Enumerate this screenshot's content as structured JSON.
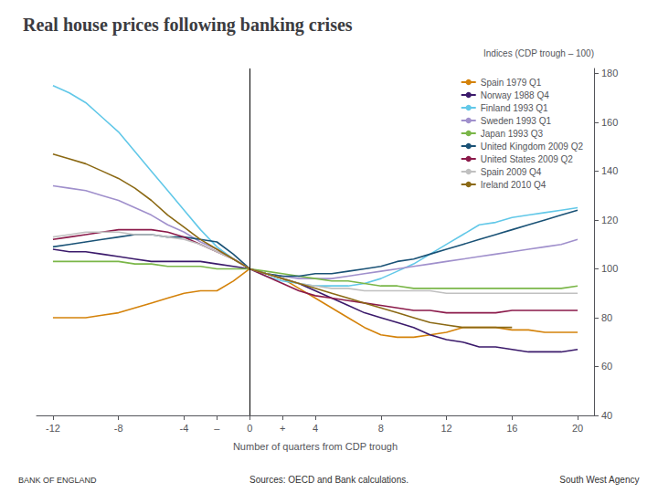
{
  "chart_data": {
    "type": "line",
    "title": "Real house prices following banking crises",
    "ylabel": "Indices (CDP trough – 100)",
    "xlabel": "Number of quarters from CDP trough",
    "annotations": [
      "BANK OF ENGLAND",
      "Sources: OECD and Bank calculations.",
      "South West Agency"
    ],
    "xlim": [
      -13,
      21
    ],
    "ylim": [
      40,
      182
    ],
    "xticks": [
      {
        "value": -12,
        "label": "-12"
      },
      {
        "value": -8,
        "label": "-8"
      },
      {
        "value": -4,
        "label": "-4"
      },
      {
        "value": -2,
        "label": "–"
      },
      0,
      {
        "value": 2,
        "label": "+"
      },
      4,
      8,
      12,
      16,
      20
    ],
    "yticks": [
      40,
      60,
      80,
      100,
      120,
      140,
      160,
      180
    ],
    "vline": 0,
    "vline_color": "#000000",
    "grid": false,
    "legend": "upper right",
    "series": [
      {
        "name": "Spain 1979 Q1",
        "color": "#D4820A",
        "x": [
          -12,
          -11,
          -10,
          -9,
          -8,
          -7,
          -6,
          -5,
          -4,
          -3,
          -2,
          -1,
          0,
          1,
          2,
          3,
          4,
          5,
          6,
          7,
          8,
          9,
          10,
          11,
          12,
          13,
          14,
          15,
          16,
          17,
          18,
          19,
          20
        ],
        "values": [
          80,
          80,
          80,
          81,
          82,
          84,
          86,
          88,
          90,
          91,
          91,
          95,
          100,
          98,
          96,
          92,
          88,
          84,
          80,
          76,
          73,
          72,
          72,
          73,
          74,
          76,
          76,
          76,
          75,
          75,
          74,
          74,
          74
        ]
      },
      {
        "name": "Norway 1988 Q4",
        "color": "#3B1A6B",
        "x": [
          -12,
          -11,
          -10,
          -9,
          -8,
          -7,
          -6,
          -5,
          -4,
          -3,
          -2,
          -1,
          0,
          1,
          2,
          3,
          4,
          5,
          6,
          7,
          8,
          9,
          10,
          11,
          12,
          13,
          14,
          15,
          16,
          17,
          18,
          19,
          20
        ],
        "values": [
          108,
          107,
          107,
          106,
          105,
          104,
          103,
          103,
          103,
          103,
          102,
          101,
          100,
          98,
          96,
          94,
          91,
          88,
          85,
          82,
          80,
          78,
          76,
          73,
          71,
          70,
          68,
          68,
          67,
          66,
          66,
          66,
          67
        ]
      },
      {
        "name": "Finland 1993 Q1",
        "color": "#62C8E8",
        "x": [
          -12,
          -11,
          -10,
          -9,
          -8,
          -7,
          -6,
          -5,
          -4,
          -3,
          -2,
          -1,
          0,
          1,
          2,
          3,
          4,
          5,
          6,
          7,
          8,
          9,
          10,
          11,
          12,
          13,
          14,
          15,
          16,
          17,
          18,
          19,
          20
        ],
        "values": [
          175,
          172,
          168,
          162,
          156,
          148,
          140,
          132,
          124,
          116,
          109,
          104,
          100,
          97,
          95,
          94,
          93,
          93,
          93,
          94,
          96,
          99,
          102,
          106,
          110,
          114,
          118,
          119,
          121,
          122,
          123,
          124,
          125
        ]
      },
      {
        "name": "Sweden 1993 Q1",
        "color": "#A090CC",
        "x": [
          -12,
          -11,
          -10,
          -9,
          -8,
          -7,
          -6,
          -5,
          -4,
          -3,
          -2,
          -1,
          0,
          1,
          2,
          3,
          4,
          5,
          6,
          7,
          8,
          9,
          10,
          11,
          12,
          13,
          14,
          15,
          16,
          17,
          18,
          19,
          20
        ],
        "values": [
          134,
          133,
          132,
          130,
          128,
          125,
          122,
          118,
          115,
          111,
          108,
          104,
          100,
          98,
          97,
          96,
          96,
          96,
          97,
          98,
          99,
          100,
          101,
          102,
          103,
          104,
          105,
          106,
          107,
          108,
          109,
          110,
          112
        ]
      },
      {
        "name": "Japan 1993 Q3",
        "color": "#7AB648",
        "x": [
          -12,
          -11,
          -10,
          -9,
          -8,
          -7,
          -6,
          -5,
          -4,
          -3,
          -2,
          -1,
          0,
          1,
          2,
          3,
          4,
          5,
          6,
          7,
          8,
          9,
          10,
          11,
          12,
          13,
          14,
          15,
          16,
          17,
          18,
          19,
          20
        ],
        "values": [
          103,
          103,
          103,
          103,
          103,
          102,
          102,
          101,
          101,
          101,
          100,
          100,
          100,
          99,
          98,
          97,
          96,
          95,
          95,
          94,
          93,
          93,
          92,
          92,
          92,
          92,
          92,
          92,
          92,
          92,
          92,
          92,
          93
        ]
      },
      {
        "name": "United Kingdom 2009 Q2",
        "color": "#1A5276",
        "x": [
          -12,
          -11,
          -10,
          -9,
          -8,
          -7,
          -6,
          -5,
          -4,
          -3,
          -2,
          -1,
          0,
          1,
          2,
          3,
          4,
          5,
          6,
          7,
          8,
          9,
          10,
          11,
          12,
          13,
          14,
          15,
          16,
          17,
          18,
          19,
          20
        ],
        "values": [
          109,
          110,
          111,
          112,
          113,
          114,
          114,
          113,
          113,
          112,
          111,
          106,
          100,
          98,
          97,
          97,
          98,
          98,
          99,
          100,
          101,
          103,
          104,
          106,
          108,
          110,
          112,
          114,
          116,
          118,
          120,
          122,
          124
        ]
      },
      {
        "name": "United States 2009 Q2",
        "color": "#8B1A4A",
        "x": [
          -12,
          -11,
          -10,
          -9,
          -8,
          -7,
          -6,
          -5,
          -4,
          -3,
          -2,
          -1,
          0,
          1,
          2,
          3,
          4,
          5,
          6,
          7,
          8,
          9,
          10,
          11,
          12,
          13,
          14,
          15,
          16,
          17,
          18,
          19,
          20
        ],
        "values": [
          112,
          113,
          114,
          115,
          116,
          116,
          116,
          115,
          113,
          110,
          107,
          104,
          100,
          97,
          94,
          91,
          89,
          88,
          87,
          86,
          85,
          84,
          83,
          83,
          82,
          82,
          82,
          82,
          83,
          83,
          83,
          83,
          83
        ]
      },
      {
        "name": "Spain 2009 Q4",
        "color": "#C0C0C0",
        "x": [
          -12,
          -11,
          -10,
          -9,
          -8,
          -7,
          -6,
          -5,
          -4,
          -3,
          -2,
          -1,
          0,
          1,
          2,
          3,
          4,
          5,
          6,
          7,
          8,
          9,
          10,
          11,
          12,
          13,
          14,
          15,
          16,
          17,
          18,
          19,
          20
        ],
        "values": [
          113,
          114,
          115,
          115,
          115,
          114,
          114,
          113,
          112,
          110,
          107,
          104,
          100,
          98,
          96,
          94,
          93,
          92,
          92,
          91,
          91,
          91,
          91,
          91,
          90,
          90,
          90,
          90,
          90,
          90,
          90,
          90,
          90
        ]
      },
      {
        "name": "Ireland 2010 Q4",
        "color": "#8B6914",
        "x": [
          -12,
          -11,
          -10,
          -9,
          -8,
          -7,
          -6,
          -5,
          -4,
          -3,
          -2,
          -1,
          0,
          1,
          2,
          3,
          4,
          5,
          6,
          7,
          8,
          9,
          10,
          11,
          12,
          13,
          14,
          15,
          16
        ],
        "values": [
          147,
          145,
          143,
          140,
          137,
          133,
          128,
          122,
          117,
          112,
          108,
          104,
          100,
          98,
          96,
          94,
          92,
          90,
          88,
          86,
          84,
          82,
          80,
          78,
          77,
          76,
          76,
          76,
          76
        ]
      }
    ]
  }
}
